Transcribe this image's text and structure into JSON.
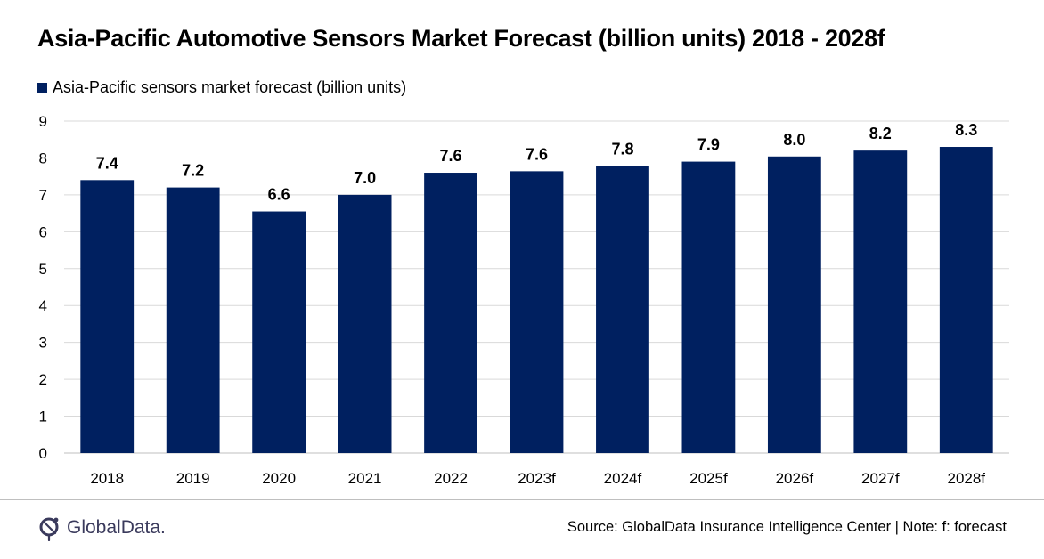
{
  "title": "Asia-Pacific Automotive Sensors Market Forecast (billion units) 2018 - 2028f",
  "legend": {
    "label": "Asia-Pacific sensors market forecast (billion units)"
  },
  "colors": {
    "bar": "#002060",
    "grid": "#d9d9d9",
    "axis": "#bfbfbf",
    "text": "#000000"
  },
  "chart_data": {
    "type": "bar",
    "title": "Asia-Pacific Automotive Sensors Market Forecast (billion units) 2018 - 2028f",
    "xlabel": "",
    "ylabel": "",
    "ylim": [
      0,
      9
    ],
    "yticks": [
      0,
      1,
      2,
      3,
      4,
      5,
      6,
      7,
      8,
      9
    ],
    "grid": true,
    "legend_position": "top-left",
    "categories": [
      "2018",
      "2019",
      "2020",
      "2021",
      "2022",
      "2023f",
      "2024f",
      "2025f",
      "2026f",
      "2027f",
      "2028f"
    ],
    "series": [
      {
        "name": "Asia-Pacific sensors market forecast (billion units)",
        "values": [
          7.4,
          7.2,
          6.55,
          7.0,
          7.6,
          7.64,
          7.78,
          7.9,
          8.04,
          8.2,
          8.3
        ],
        "labels": [
          "7.4",
          "7.2",
          "6.6",
          "7.0",
          "7.6",
          "7.6",
          "7.8",
          "7.9",
          "8.0",
          "8.2",
          "8.3"
        ]
      }
    ]
  },
  "footer": {
    "logo_text": "GlobalData.",
    "source": "Source: GlobalData Insurance Intelligence Center | Note: f: forecast"
  }
}
